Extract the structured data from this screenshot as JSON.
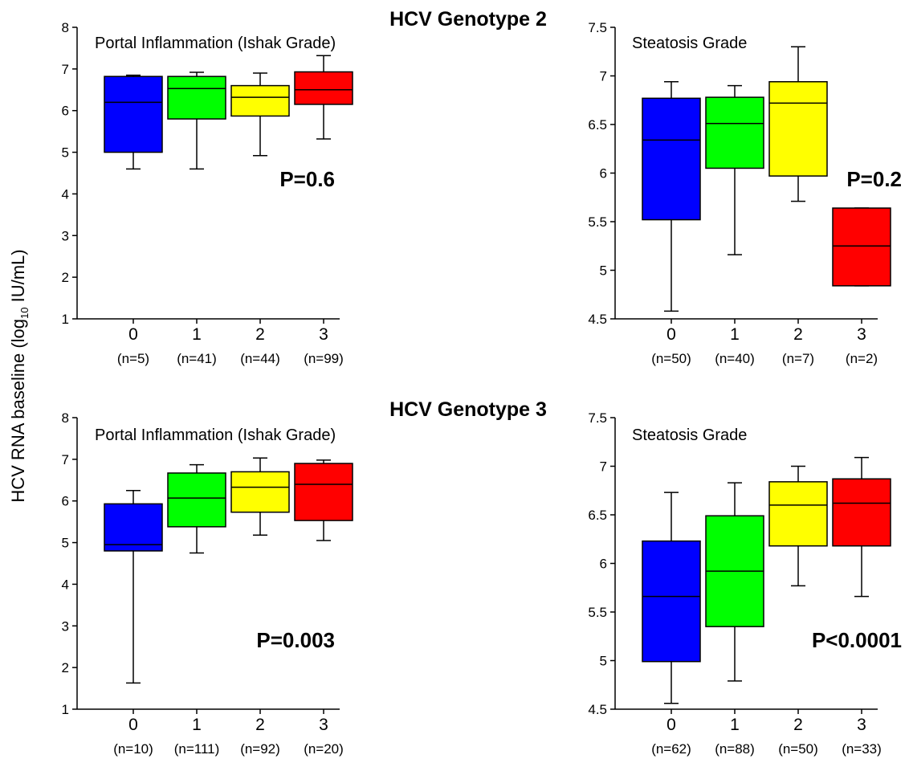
{
  "figure": {
    "ylabel": "HCV RNA baseline (log",
    "ylabel_sub": "10",
    "ylabel_unit": " IU/mL)",
    "colors": [
      "#0000ff",
      "#00ff00",
      "#ffff00",
      "#ff0000"
    ],
    "groups": [
      {
        "title": "HCV Genotype 2"
      },
      {
        "title": "HCV Genotype 3"
      }
    ]
  },
  "chart_data": [
    {
      "type": "box",
      "group": 0,
      "panel_label": "Portal Inflammation (Ishak Grade)",
      "pvalue": "P=0.6",
      "ylim": [
        1,
        8
      ],
      "yticks": [
        "1",
        "2",
        "3",
        "4",
        "5",
        "6",
        "7",
        "8"
      ],
      "categories": [
        "0",
        "1",
        "2",
        "3"
      ],
      "counts": [
        "(n=5)",
        "(n=41)",
        "(n=44)",
        "(n=99)"
      ],
      "boxes": [
        {
          "min": 4.6,
          "q1": 5.0,
          "median": 6.2,
          "q3": 6.82,
          "max": 6.85
        },
        {
          "min": 4.6,
          "q1": 5.8,
          "median": 6.53,
          "q3": 6.82,
          "max": 6.92
        },
        {
          "min": 4.92,
          "q1": 5.87,
          "median": 6.32,
          "q3": 6.6,
          "max": 6.9
        },
        {
          "min": 5.32,
          "q1": 6.15,
          "median": 6.5,
          "q3": 6.93,
          "max": 7.32
        }
      ]
    },
    {
      "type": "box",
      "group": 0,
      "panel_label": "Steatosis Grade",
      "pvalue": "P=0.2",
      "ylim": [
        4.5,
        7.5
      ],
      "yticks": [
        "4.5",
        "5",
        "5.5",
        "6",
        "6.5",
        "7",
        "7.5"
      ],
      "categories": [
        "0",
        "1",
        "2",
        "3"
      ],
      "counts": [
        "(n=50)",
        "(n=40)",
        "(n=7)",
        "(n=2)"
      ],
      "boxes": [
        {
          "min": 4.58,
          "q1": 5.52,
          "median": 6.34,
          "q3": 6.77,
          "max": 6.94
        },
        {
          "min": 5.16,
          "q1": 6.05,
          "median": 6.51,
          "q3": 6.78,
          "max": 6.9
        },
        {
          "min": 5.71,
          "q1": 5.97,
          "median": 6.72,
          "q3": 6.94,
          "max": 7.3
        },
        {
          "min": 4.84,
          "q1": 4.84,
          "median": 5.25,
          "q3": 5.64,
          "max": 5.64
        }
      ]
    },
    {
      "type": "box",
      "group": 1,
      "panel_label": "Portal Inflammation (Ishak Grade)",
      "pvalue": "P=0.003",
      "ylim": [
        1,
        8
      ],
      "yticks": [
        "1",
        "2",
        "3",
        "4",
        "5",
        "6",
        "7",
        "8"
      ],
      "categories": [
        "0",
        "1",
        "2",
        "3"
      ],
      "counts": [
        "(n=10)",
        "(n=111)",
        "(n=92)",
        "(n=20)"
      ],
      "boxes": [
        {
          "min": 1.63,
          "q1": 4.8,
          "median": 4.95,
          "q3": 5.93,
          "max": 6.25
        },
        {
          "min": 4.75,
          "q1": 5.38,
          "median": 6.07,
          "q3": 6.67,
          "max": 6.87
        },
        {
          "min": 5.18,
          "q1": 5.73,
          "median": 6.33,
          "q3": 6.7,
          "max": 7.03
        },
        {
          "min": 5.05,
          "q1": 5.53,
          "median": 6.4,
          "q3": 6.9,
          "max": 6.98
        }
      ]
    },
    {
      "type": "box",
      "group": 1,
      "panel_label": "Steatosis Grade",
      "pvalue": "P<0.0001",
      "ylim": [
        4.5,
        7.5
      ],
      "yticks": [
        "4.5",
        "5",
        "5.5",
        "6",
        "6.5",
        "7",
        "7.5"
      ],
      "categories": [
        "0",
        "1",
        "2",
        "3"
      ],
      "counts": [
        "(n=62)",
        "(n=88)",
        "(n=50)",
        "(n=33)"
      ],
      "boxes": [
        {
          "min": 4.56,
          "q1": 4.99,
          "median": 5.66,
          "q3": 6.23,
          "max": 6.73
        },
        {
          "min": 4.79,
          "q1": 5.35,
          "median": 5.92,
          "q3": 6.49,
          "max": 6.83
        },
        {
          "min": 5.77,
          "q1": 6.18,
          "median": 6.6,
          "q3": 6.84,
          "max": 7.0
        },
        {
          "min": 5.66,
          "q1": 6.18,
          "median": 6.62,
          "q3": 6.87,
          "max": 7.09
        }
      ]
    }
  ]
}
